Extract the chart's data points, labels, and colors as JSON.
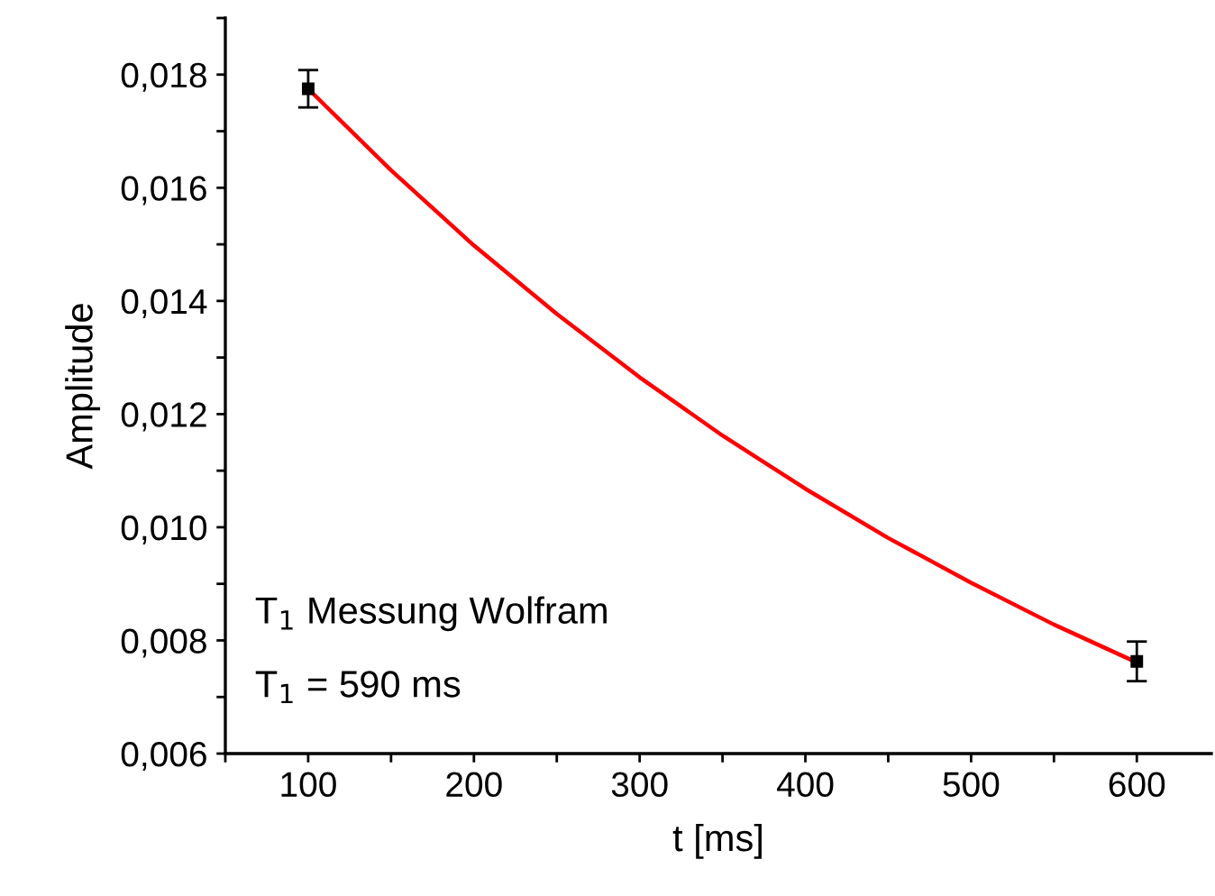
{
  "chart_data": {
    "type": "scatter",
    "xlabel": "t [ms]",
    "ylabel": "Amplitude",
    "xlim": [
      50,
      645
    ],
    "ylim": [
      0.006,
      0.019
    ],
    "xticks": [
      {
        "value": 50,
        "label": null
      },
      100,
      {
        "value": 150,
        "label": null
      },
      200,
      {
        "value": 250,
        "label": null
      },
      300,
      {
        "value": 350,
        "label": null
      },
      400,
      {
        "value": 450,
        "label": null
      },
      500,
      {
        "value": 550,
        "label": null
      },
      600
    ],
    "yticks": [
      {
        "value": 0.006,
        "label": "0,006"
      },
      {
        "value": 0.007,
        "label": null
      },
      {
        "value": 0.008,
        "label": "0,008"
      },
      {
        "value": 0.009,
        "label": null
      },
      {
        "value": 0.01,
        "label": "0,010"
      },
      {
        "value": 0.011,
        "label": null
      },
      {
        "value": 0.012,
        "label": "0,012"
      },
      {
        "value": 0.013,
        "label": null
      },
      {
        "value": 0.014,
        "label": "0,014"
      },
      {
        "value": 0.015,
        "label": null
      },
      {
        "value": 0.016,
        "label": "0,016"
      },
      {
        "value": 0.017,
        "label": null
      },
      {
        "value": 0.018,
        "label": "0,018"
      },
      {
        "value": 0.019,
        "label": null
      }
    ],
    "grid": false,
    "legend": false,
    "series": [
      {
        "type": "line",
        "color": "#ff0000",
        "marker": "none",
        "line_style": "solid",
        "x": [
          100,
          150,
          200,
          250,
          300,
          350,
          400,
          450,
          500,
          550,
          600
        ],
        "values": [
          0.01775,
          0.01631,
          0.01498,
          0.01377,
          0.01265,
          0.01162,
          0.01068,
          0.00981,
          0.00902,
          0.00828,
          0.00761
        ]
      },
      {
        "color": "#000000",
        "marker": "square",
        "x": [
          100,
          600
        ],
        "values": [
          0.01775,
          0.00763
        ],
        "errors": [
          0.00033,
          0.00035
        ]
      }
    ],
    "annotations": [
      "T$_{1}$ Messung Wolfram",
      "T$_{1}$ = 590 ms"
    ]
  }
}
